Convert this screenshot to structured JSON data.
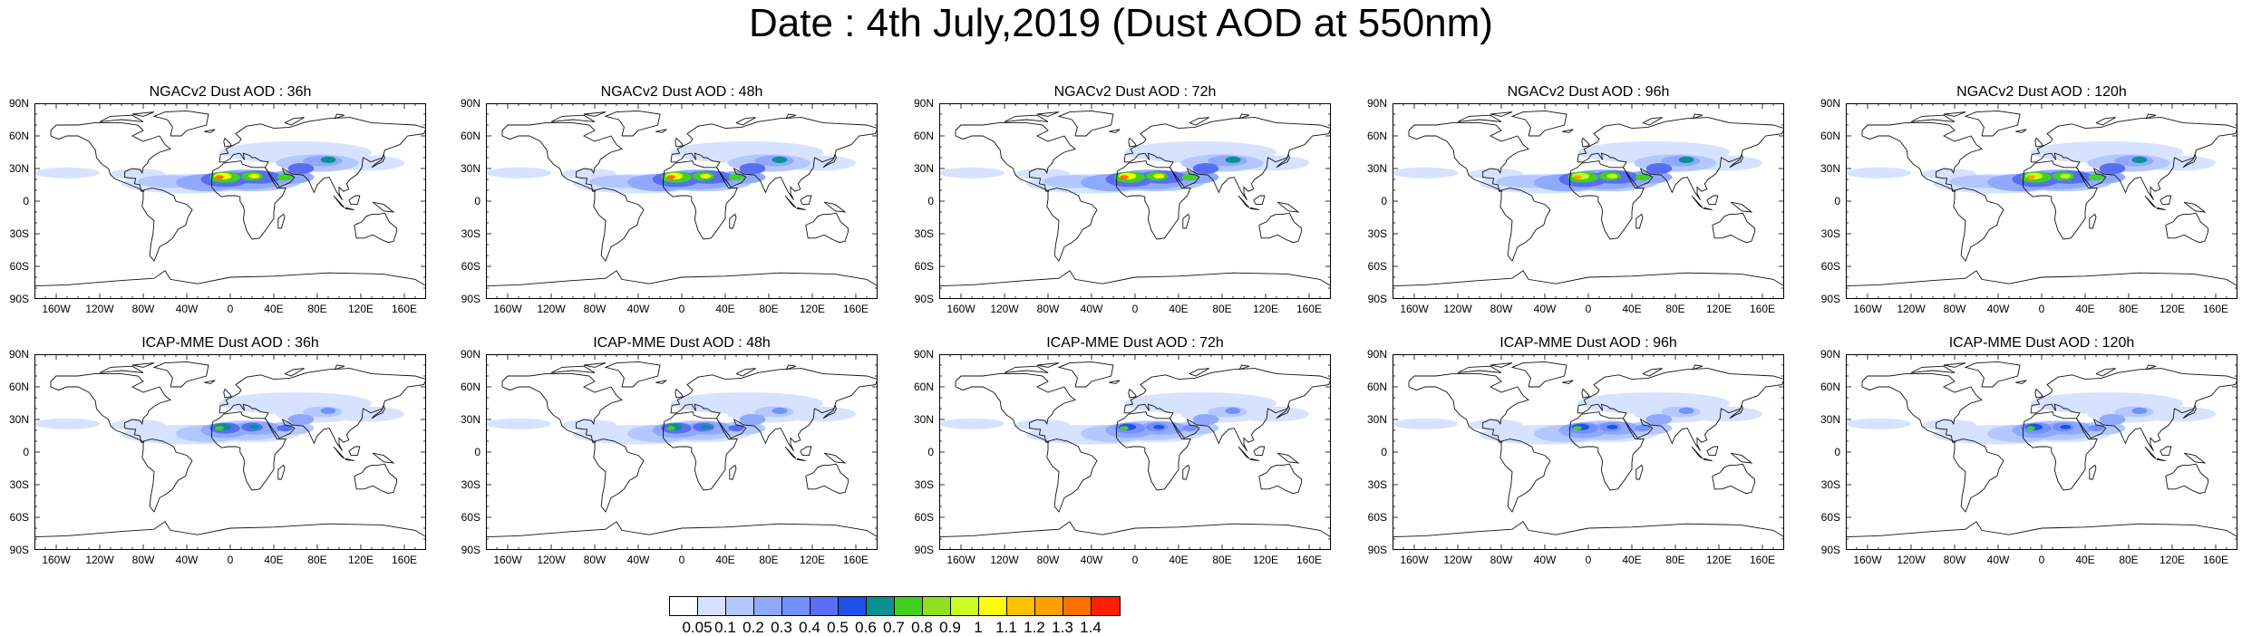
{
  "title": "Date : 4th July,2019 (Dust AOD at 550nm)",
  "panels": [
    {
      "title": "NGACv2 Dust AOD : 36h",
      "intensity": 1.0
    },
    {
      "title": "NGACv2 Dust AOD : 48h",
      "intensity": 1.0
    },
    {
      "title": "NGACv2 Dust AOD : 72h",
      "intensity": 1.0
    },
    {
      "title": "NGACv2 Dust AOD : 96h",
      "intensity": 0.95
    },
    {
      "title": "NGACv2 Dust AOD : 120h",
      "intensity": 0.95
    },
    {
      "title": "ICAP-MME Dust AOD : 36h",
      "intensity": 0.6
    },
    {
      "title": "ICAP-MME Dust AOD : 48h",
      "intensity": 0.6
    },
    {
      "title": "ICAP-MME Dust AOD : 72h",
      "intensity": 0.55
    },
    {
      "title": "ICAP-MME Dust AOD : 96h",
      "intensity": 0.55
    },
    {
      "title": "ICAP-MME Dust AOD : 120h",
      "intensity": 0.55
    }
  ],
  "lat_labels": [
    "90N",
    "60N",
    "30N",
    "0",
    "30S",
    "60S",
    "90S"
  ],
  "lon_labels": [
    "160W",
    "120W",
    "80W",
    "40W",
    "0",
    "40E",
    "80E",
    "120E",
    "160E"
  ],
  "colorbar": {
    "labels": [
      "0.05",
      "0.1",
      "0.2",
      "0.3",
      "0.4",
      "0.5",
      "0.6",
      "0.7",
      "0.8",
      "0.9",
      "1",
      "1.1",
      "1.2",
      "1.3",
      "1.4"
    ],
    "colors": [
      "#ffffff",
      "#d6e2ff",
      "#b4c8ff",
      "#8fa9ff",
      "#7490ff",
      "#5a6ef5",
      "#2050e8",
      "#0a9090",
      "#40d020",
      "#90e020",
      "#c8ff20",
      "#ffff00",
      "#ffc000",
      "#ffa000",
      "#ff7000",
      "#ff2000"
    ]
  }
}
